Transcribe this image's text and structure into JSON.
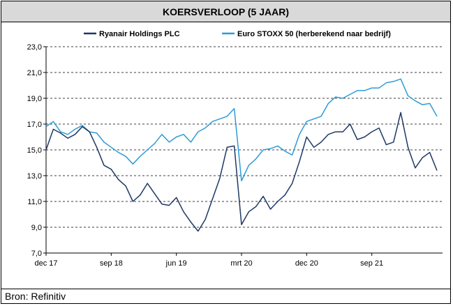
{
  "header": {
    "title": "KOERSVERLOOP (5 JAAR)"
  },
  "footer": {
    "source": "Bron: Refinitiv"
  },
  "chart_data": {
    "type": "line",
    "title": "KOERSVERLOOP (5 JAAR)",
    "xlabel": "",
    "ylabel": "",
    "ylim": [
      7.0,
      23.0
    ],
    "yticks": [
      "7,0",
      "9,0",
      "11,0",
      "13,0",
      "15,0",
      "17,0",
      "19,0",
      "21,0",
      "23,0"
    ],
    "xticks": [
      "dec 17",
      "sep 18",
      "jun 19",
      "mrt 20",
      "dec 20",
      "sep 21"
    ],
    "grid": "horizontal dashed",
    "legend": "top",
    "series": [
      {
        "name": "Ryanair Holdings PLC",
        "color": "#1f3864",
        "x": [
          "2017-12",
          "2018-01",
          "2018-02",
          "2018-03",
          "2018-04",
          "2018-05",
          "2018-06",
          "2018-07",
          "2018-08",
          "2018-09",
          "2018-10",
          "2018-11",
          "2018-12",
          "2019-01",
          "2019-02",
          "2019-03",
          "2019-04",
          "2019-05",
          "2019-06",
          "2019-07",
          "2019-08",
          "2019-09",
          "2019-10",
          "2019-11",
          "2019-12",
          "2020-01",
          "2020-02",
          "2020-03",
          "2020-04",
          "2020-05",
          "2020-06",
          "2020-07",
          "2020-08",
          "2020-09",
          "2020-10",
          "2020-11",
          "2020-12",
          "2021-01",
          "2021-02",
          "2021-03",
          "2021-04",
          "2021-05",
          "2021-06",
          "2021-07",
          "2021-08",
          "2021-09",
          "2021-10",
          "2021-11",
          "2021-12",
          "2022-01",
          "2022-02",
          "2022-03",
          "2022-04",
          "2022-05",
          "2022-06"
        ],
        "values": [
          15.0,
          16.6,
          16.3,
          15.9,
          16.2,
          16.8,
          16.4,
          15.2,
          13.8,
          13.5,
          12.7,
          12.2,
          11.0,
          11.5,
          12.4,
          11.6,
          10.8,
          10.7,
          11.3,
          10.2,
          9.4,
          8.7,
          9.6,
          11.2,
          12.8,
          15.2,
          15.3,
          9.2,
          10.2,
          10.6,
          11.4,
          10.4,
          11.0,
          11.5,
          12.4,
          14.1,
          16.0,
          15.2,
          15.6,
          16.2,
          16.4,
          16.4,
          17.0,
          15.8,
          16.0,
          16.4,
          16.7,
          15.4,
          15.6,
          17.9,
          15.2,
          13.6,
          14.4,
          14.8,
          13.4
        ]
      },
      {
        "name": "Euro STOXX 50 (herberekend naar bedrijf)",
        "color": "#2e9bd6",
        "x": [
          "2017-12",
          "2018-01",
          "2018-02",
          "2018-03",
          "2018-04",
          "2018-05",
          "2018-06",
          "2018-07",
          "2018-08",
          "2018-09",
          "2018-10",
          "2018-11",
          "2018-12",
          "2019-01",
          "2019-02",
          "2019-03",
          "2019-04",
          "2019-05",
          "2019-06",
          "2019-07",
          "2019-08",
          "2019-09",
          "2019-10",
          "2019-11",
          "2019-12",
          "2020-01",
          "2020-02",
          "2020-03",
          "2020-04",
          "2020-05",
          "2020-06",
          "2020-07",
          "2020-08",
          "2020-09",
          "2020-10",
          "2020-11",
          "2020-12",
          "2021-01",
          "2021-02",
          "2021-03",
          "2021-04",
          "2021-05",
          "2021-06",
          "2021-07",
          "2021-08",
          "2021-09",
          "2021-10",
          "2021-11",
          "2021-12",
          "2022-01",
          "2022-02",
          "2022-03",
          "2022-04",
          "2022-05",
          "2022-06"
        ],
        "values": [
          16.8,
          17.2,
          16.4,
          16.2,
          16.6,
          16.9,
          16.4,
          16.3,
          15.6,
          15.2,
          14.8,
          14.5,
          13.9,
          14.5,
          15.0,
          15.5,
          16.2,
          15.6,
          16.0,
          16.2,
          15.6,
          16.4,
          16.7,
          17.2,
          17.4,
          17.6,
          18.2,
          12.6,
          13.8,
          14.3,
          15.0,
          15.1,
          15.3,
          14.9,
          14.6,
          16.2,
          17.2,
          17.4,
          17.6,
          18.6,
          19.1,
          19.0,
          19.3,
          19.6,
          19.6,
          19.8,
          19.8,
          20.2,
          20.3,
          20.5,
          19.2,
          18.8,
          18.5,
          18.6,
          17.6
        ]
      }
    ]
  }
}
